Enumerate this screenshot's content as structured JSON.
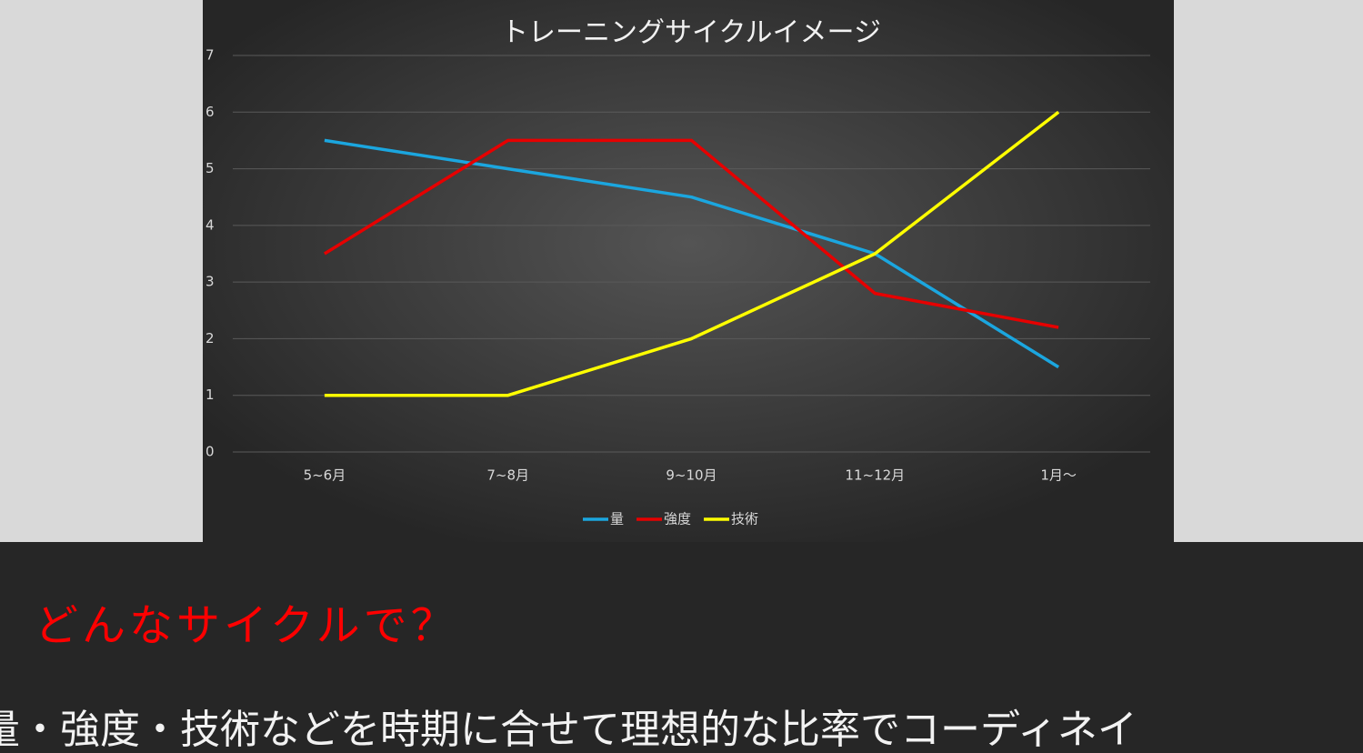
{
  "chart_data": {
    "type": "line",
    "title": "トレーニングサイクルイメージ",
    "categories": [
      "5~6月",
      "7~8月",
      "9~10月",
      "11~12月",
      "1月～"
    ],
    "series": [
      {
        "name": "量",
        "color": "#1ba6df",
        "values": [
          5.5,
          5,
          4.5,
          3.5,
          1.5
        ]
      },
      {
        "name": "強度",
        "color": "#e60000",
        "values": [
          3.5,
          5.5,
          5.5,
          2.8,
          2.2
        ]
      },
      {
        "name": "技術",
        "color": "#ffff00",
        "values": [
          1,
          1,
          2,
          3.5,
          6
        ]
      }
    ],
    "ylim": [
      0,
      7
    ],
    "yticks": [
      0,
      1,
      2,
      3,
      4,
      5,
      6,
      7
    ],
    "grid": true,
    "legend": "bottom"
  },
  "slide": {
    "heading": "どんなサイクルで？",
    "body": "量・強度・技術などを時期に合せて理想的な比率でコーディネイ"
  }
}
